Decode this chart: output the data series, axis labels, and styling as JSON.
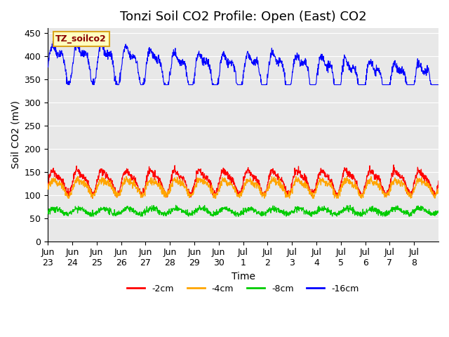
{
  "title": "Tonzi Soil CO2 Profile: Open (East) CO2",
  "ylabel": "Soil CO2 (mV)",
  "xlabel": "Time",
  "legend_label": "TZ_soilco2",
  "colors": {
    "-2cm": "#FF0000",
    "-4cm": "#FFA500",
    "-8cm": "#00CC00",
    "-16cm": "#0000FF"
  },
  "legend_entries": [
    "-2cm",
    "-4cm",
    "-8cm",
    "-16cm"
  ],
  "ylim": [
    0,
    460
  ],
  "yticks": [
    0,
    50,
    100,
    150,
    200,
    250,
    300,
    350,
    400,
    450
  ],
  "background_color": "#ffffff",
  "plot_bg_color": "#e8e8e8",
  "xtick_labels": [
    "Jun\n23",
    "Jun\n24",
    "Jun\n25",
    "Jun\n26",
    "Jun\n27",
    "Jun\n28",
    "Jun\n29",
    "Jun\n30",
    "Jul\n1",
    "Jul\n2",
    "Jul\n3",
    "Jul\n4",
    "Jul\n5",
    "Jul\n6",
    "Jul\n7",
    "Jul\n8"
  ],
  "grid_color": "#ffffff",
  "title_fontsize": 13,
  "axis_fontsize": 10,
  "tick_fontsize": 9
}
